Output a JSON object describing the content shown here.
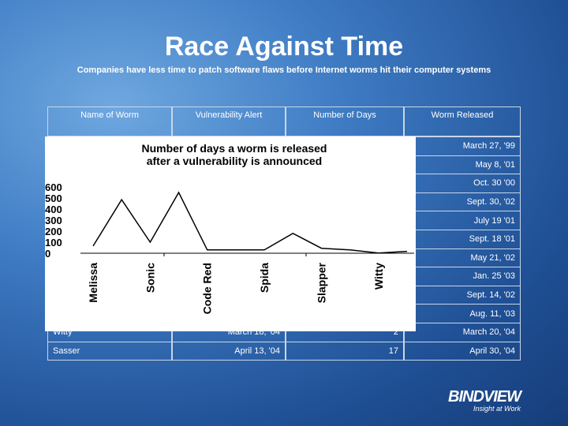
{
  "title": "Race Against Time",
  "subtitle": "Companies have less time to patch software flaws before Internet worms hit their computer systems",
  "table": {
    "header": [
      "Name of Worm",
      "Vulnerability Alert",
      "Number of Days",
      "Worm Released"
    ],
    "rows": [
      {
        "released": "March 27, '99"
      },
      {
        "released": "May 8, '01"
      },
      {
        "released": "Oct. 30 '00"
      },
      {
        "released": "Sept. 30, '02"
      },
      {
        "released": "July 19 '01"
      },
      {
        "released": "Sept. 18 '01"
      },
      {
        "released": "May 21, '02"
      },
      {
        "released": "Jan. 25 '03"
      },
      {
        "released": "Sept. 14, '02"
      },
      {
        "released": "Aug. 11, '03"
      },
      {
        "name": "Witty",
        "alert": "March 18, '04",
        "days": 2,
        "released": "March 20, '04"
      },
      {
        "name": "Sasser",
        "alert": "April 13, '04",
        "days": 17,
        "released": "April 30, '04"
      }
    ]
  },
  "chart_data": {
    "type": "line",
    "title": "Number of days a worm is released after a vulnerability is announced",
    "categories": [
      "Melissa",
      null,
      "Sonic",
      null,
      "Code Red",
      null,
      "Spida",
      null,
      "Slapper",
      null,
      "Witty",
      null
    ],
    "values": [
      65,
      485,
      100,
      550,
      30,
      30,
      30,
      180,
      45,
      30,
      2,
      17
    ],
    "color": "#000000",
    "ylim": [
      0,
      600
    ],
    "yticks": [
      0,
      100,
      200,
      300,
      400,
      500,
      600
    ]
  },
  "logo": {
    "name": "BINDVIEW",
    "tagline": "Insight at Work"
  }
}
